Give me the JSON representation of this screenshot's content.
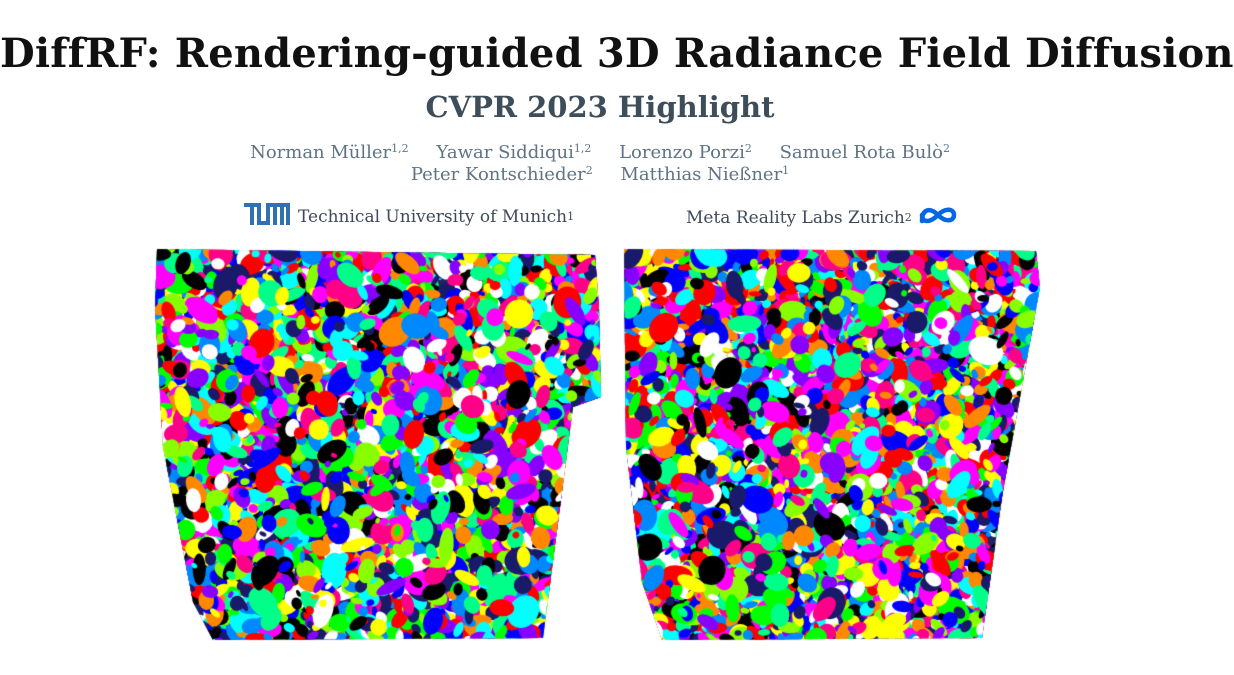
{
  "header": {
    "title": "DiffRF: Rendering-guided 3D Radiance Field Diffusion",
    "subtitle": "CVPR 2023 Highlight"
  },
  "authors": {
    "row1": [
      {
        "name": "Norman Müller",
        "sup": "1,2"
      },
      {
        "name": "Yawar Siddiqui",
        "sup": "1,2"
      },
      {
        "name": "Lorenzo Porzi",
        "sup": "2"
      },
      {
        "name": "Samuel Rota Bulò",
        "sup": "2"
      }
    ],
    "row2": [
      {
        "name": "Peter Kontschieder",
        "sup": "2"
      },
      {
        "name": "Matthias Nießner",
        "sup": "1"
      }
    ]
  },
  "affiliations": {
    "tum": {
      "name": "Technical University of Munich",
      "sup": "1",
      "logo": "tum-logo"
    },
    "meta": {
      "name": "Meta Reality Labs Zurich",
      "sup": "2",
      "logo": "meta-infinity-logo"
    }
  },
  "colors": {
    "title": "#111111",
    "subtitle": "#3d4d5a",
    "authors": "#5e7385",
    "tum_blue": "#3070b3",
    "meta_blue": "#0668e1"
  }
}
